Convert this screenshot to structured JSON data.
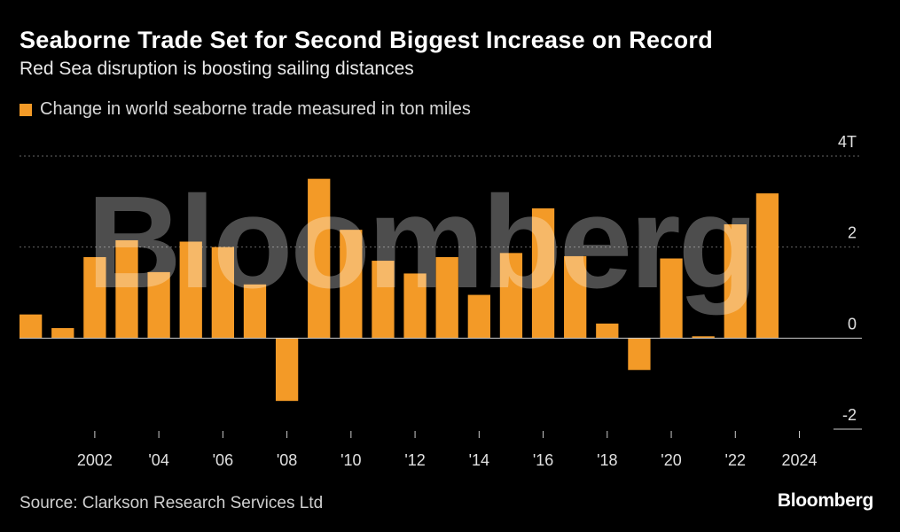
{
  "header": {
    "title": "Seaborne Trade Set for Second Biggest Increase on Record",
    "subtitle": "Red Sea disruption is boosting sailing distances"
  },
  "footer": {
    "source": "Source: Clarkson Research Services Ltd",
    "brand": "Bloomberg"
  },
  "watermark": "Bloomberg",
  "colors": {
    "bar": "#F39A27",
    "background": "#000000",
    "grid": "#666666"
  },
  "chart_data": {
    "type": "bar",
    "legend": "Change in world seaborne trade measured in ton miles",
    "legend_position": "top-left",
    "y_axis_position": "right",
    "grid": true,
    "ylim": [
      -2,
      4
    ],
    "yticks": [
      {
        "value": 4,
        "label": "4T"
      },
      {
        "value": 2,
        "label": "2"
      },
      {
        "value": 0,
        "label": "0"
      },
      {
        "value": -2,
        "label": "-2"
      }
    ],
    "categories": [
      2000,
      2001,
      2002,
      2003,
      2004,
      2005,
      2006,
      2007,
      2008,
      2009,
      2010,
      2011,
      2012,
      2013,
      2014,
      2015,
      2016,
      2017,
      2018,
      2019,
      2020,
      2021,
      2022,
      2023,
      2024
    ],
    "series": [
      {
        "name": "Change in world seaborne trade measured in ton miles",
        "values": [
          0.52,
          0.22,
          1.78,
          2.15,
          1.45,
          2.12,
          2.0,
          1.18,
          -1.38,
          3.5,
          2.38,
          1.7,
          1.42,
          1.78,
          0.95,
          1.87,
          2.85,
          1.8,
          0.32,
          -0.7,
          1.75,
          0.04,
          2.5,
          3.18,
          0.0
        ]
      }
    ],
    "xtick_labels": [
      {
        "year": 2002,
        "label": "2002"
      },
      {
        "year": 2004,
        "label": "'04"
      },
      {
        "year": 2006,
        "label": "'06"
      },
      {
        "year": 2008,
        "label": "'08"
      },
      {
        "year": 2010,
        "label": "'10"
      },
      {
        "year": 2012,
        "label": "'12"
      },
      {
        "year": 2014,
        "label": "'14"
      },
      {
        "year": 2016,
        "label": "'16"
      },
      {
        "year": 2018,
        "label": "'18"
      },
      {
        "year": 2020,
        "label": "'20"
      },
      {
        "year": 2022,
        "label": "'22"
      },
      {
        "year": 2024,
        "label": "2024"
      }
    ]
  }
}
